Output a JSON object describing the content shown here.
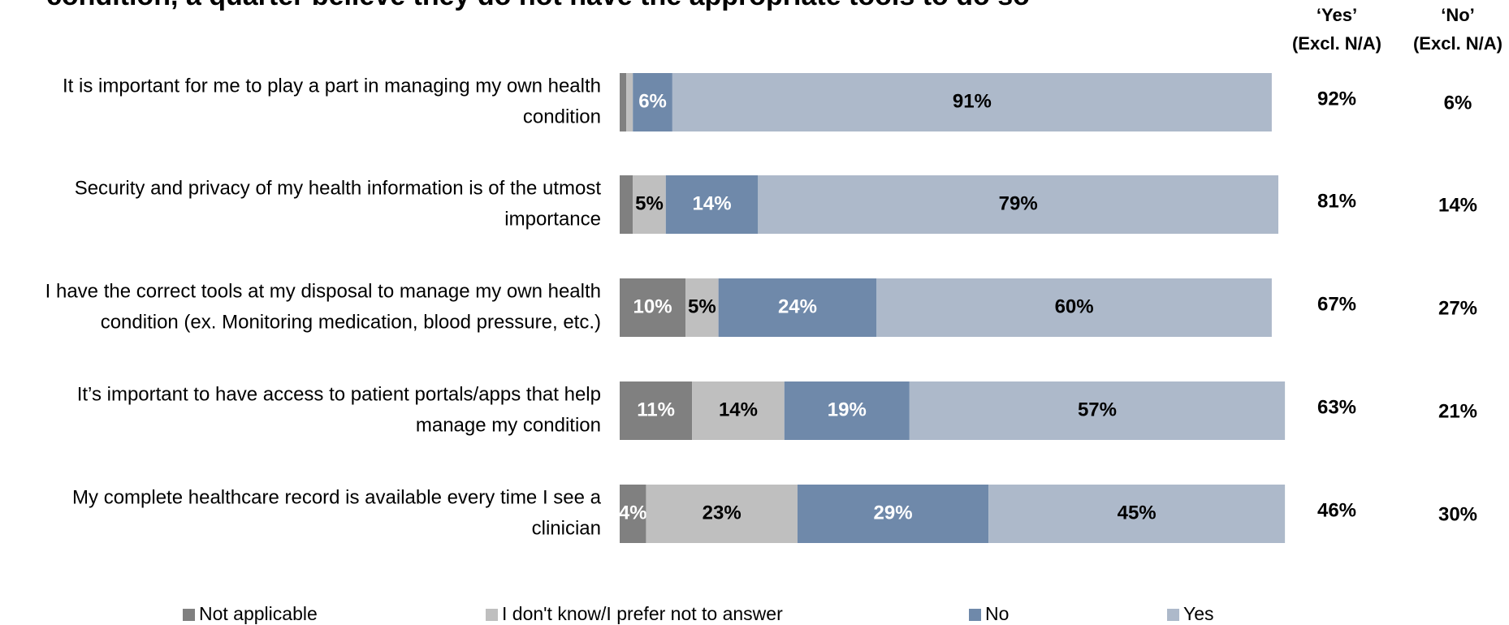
{
  "chart_data": {
    "type": "stacked-bar-horizontal",
    "title": "condition, a quarter believe they do not have the appropriate tools to do so",
    "categories": [
      [
        "It is important for me to play a part in managing my own health",
        "condition"
      ],
      [
        "Security and privacy of my health information is of the utmost",
        "importance"
      ],
      [
        "I have the correct tools at my disposal to manage my own health",
        "condition (ex. Monitoring medication, blood pressure, etc.)"
      ],
      [
        "It’s important to have access to patient portals/apps that help",
        "manage my condition"
      ],
      [
        "My complete healthcare record is available every time I see a",
        "clinician"
      ]
    ],
    "xlim": [
      0,
      100
    ],
    "series": [
      {
        "name": "Not applicable",
        "color": "#808080",
        "label_color": "#ffffff",
        "values": [
          1,
          2,
          10,
          11,
          4
        ],
        "value_labels": [
          null,
          null,
          "10%",
          "11%",
          "4%"
        ]
      },
      {
        "name": "I don't know/I prefer not to answer",
        "color": "#bfbfbf",
        "label_color": "#000000",
        "values": [
          1,
          5,
          5,
          14,
          23
        ],
        "value_labels": [
          null,
          "5%",
          "5%",
          "14%",
          "23%"
        ]
      },
      {
        "name": "No",
        "color": "#6f89aa",
        "label_color": "#ffffff",
        "values": [
          6,
          14,
          24,
          19,
          29
        ],
        "value_labels": [
          "6%",
          "14%",
          "24%",
          "19%",
          "29%"
        ]
      },
      {
        "name": "Yes",
        "color": "#adb9ca",
        "label_color": "#000000",
        "values": [
          91,
          79,
          60,
          57,
          45
        ],
        "value_labels": [
          "91%",
          "79%",
          "60%",
          "57%",
          "45%"
        ]
      }
    ],
    "side_columns": [
      {
        "header": [
          "‘Yes’",
          "(Excl. N/A)"
        ],
        "values": [
          92,
          81,
          67,
          63,
          46
        ],
        "value_labels": [
          "92%",
          "81%",
          "67%",
          "63%",
          "46%"
        ]
      },
      {
        "header": [
          "‘No’",
          "(Excl. N/A)"
        ],
        "values": [
          6,
          14,
          27,
          21,
          30
        ],
        "value_labels": [
          "6%",
          "14%",
          "27%",
          "21%",
          "30%"
        ]
      }
    ],
    "legend": "bottom"
  }
}
